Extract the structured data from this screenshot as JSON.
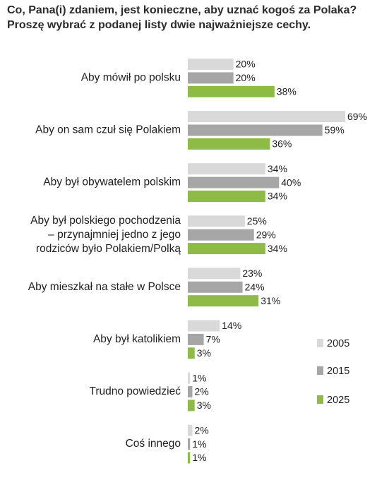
{
  "title": {
    "line1": "Co, Pana(i) zdaniem, jest konieczne, aby uznać kogoś za Polaka?",
    "line2": "Proszę wybrać z podanej listy dwie najważniejsze cechy."
  },
  "colors": {
    "2005": "#d9d9d9",
    "2015": "#a6a6a6",
    "2025": "#8dbb46"
  },
  "chart_data": {
    "type": "bar",
    "orientation": "horizontal",
    "categories": [
      [
        "Aby mówił po polsku"
      ],
      [
        "Aby on sam czuł się Polakiem"
      ],
      [
        "Aby był obywatelem polskim"
      ],
      [
        "Aby był polskiego pochodzenia",
        "– przynajmniej jedno z jego",
        "rodziców było Polakiem/Polką"
      ],
      [
        "Aby mieszkał na stałe w Polsce"
      ],
      [
        "Aby był katolikiem"
      ],
      [
        "Trudno powiedzieć"
      ],
      [
        "Coś innego"
      ]
    ],
    "series": [
      {
        "name": "2005",
        "values": [
          20,
          69,
          34,
          25,
          23,
          14,
          1,
          2
        ]
      },
      {
        "name": "2015",
        "values": [
          20,
          59,
          40,
          29,
          24,
          7,
          2,
          1
        ]
      },
      {
        "name": "2025",
        "values": [
          38,
          36,
          34,
          34,
          31,
          3,
          3,
          1
        ]
      }
    ],
    "unit": "%",
    "xlim": [
      0,
      69
    ],
    "grid": false,
    "legend_position": "right"
  }
}
